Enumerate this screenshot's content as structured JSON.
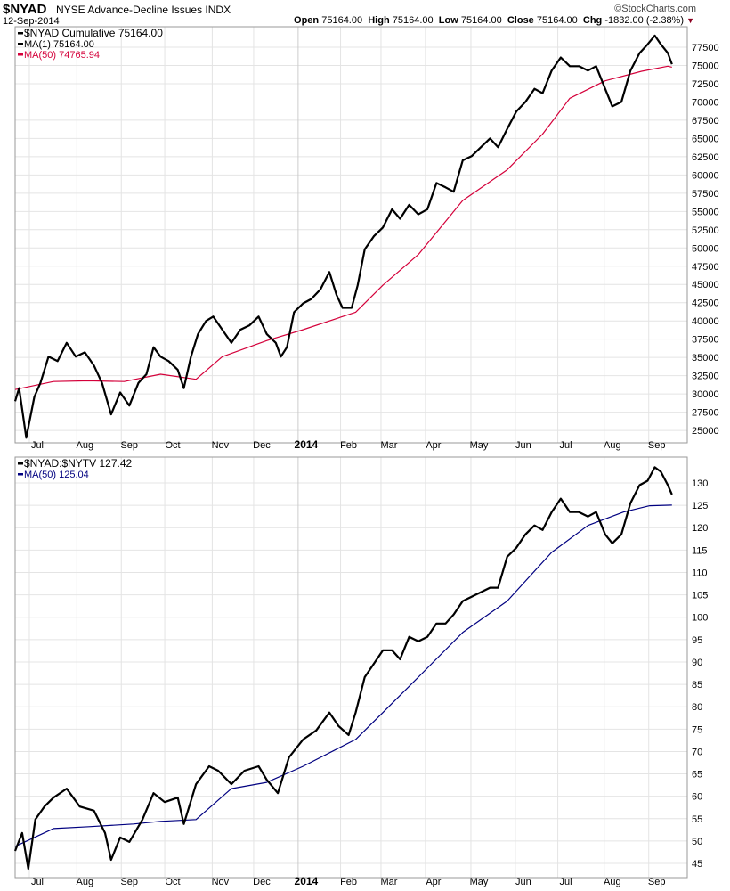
{
  "header": {
    "symbol": "$NYAD",
    "name": "NYSE Advance-Decline Issues INDX",
    "date": "12-Sep-2014",
    "watermark": "©StockCharts.com",
    "open_label": "Open",
    "open": "75164.00",
    "high_label": "High",
    "high": "75164.00",
    "low_label": "Low",
    "low": "75164.00",
    "close_label": "Close",
    "close": "75164.00",
    "chg_label": "Chg",
    "chg": "-1832.00 (-2.38%)"
  },
  "colors": {
    "price": "#000000",
    "ma_red": "#d4003a",
    "ma_blue": "#000080",
    "grid": "#e4e4e4",
    "border": "#9a9a9a"
  },
  "chart_data": [
    {
      "type": "line",
      "title": "$NYAD Cumulative",
      "x_unit": "weeks since mid-Jun 2013",
      "xlim": [
        0,
        66
      ],
      "ylim": [
        22500,
        80000
      ],
      "yticks": [
        25000,
        27500,
        30000,
        32500,
        35000,
        37500,
        40000,
        42500,
        45000,
        47500,
        50000,
        52500,
        55000,
        57500,
        60000,
        62500,
        65000,
        67500,
        70000,
        72500,
        75000,
        77500
      ],
      "legend": [
        "$NYAD Cumulative 75164.00",
        "MA(1) 75164.00",
        "MA(50) 74765.94"
      ],
      "legend_placement": "top-left",
      "series": [
        {
          "name": "$NYAD Cumulative",
          "color": "#000000",
          "points": [
            [
              0,
              29000
            ],
            [
              0.4,
              30800
            ],
            [
              1.1,
              24000
            ],
            [
              1.9,
              29600
            ],
            [
              2.5,
              31500
            ],
            [
              3.3,
              35100
            ],
            [
              4.2,
              34500
            ],
            [
              5.1,
              37000
            ],
            [
              6.0,
              35100
            ],
            [
              6.9,
              35700
            ],
            [
              7.8,
              33900
            ],
            [
              8.6,
              31500
            ],
            [
              9.5,
              27200
            ],
            [
              10.4,
              30200
            ],
            [
              11.3,
              28400
            ],
            [
              12.2,
              31500
            ],
            [
              13.0,
              32700
            ],
            [
              13.7,
              36400
            ],
            [
              14.4,
              35100
            ],
            [
              15.2,
              34500
            ],
            [
              16.1,
              33300
            ],
            [
              16.7,
              30800
            ],
            [
              17.4,
              35100
            ],
            [
              18.1,
              38200
            ],
            [
              18.9,
              40000
            ],
            [
              19.6,
              40600
            ],
            [
              20.5,
              38800
            ],
            [
              21.4,
              37000
            ],
            [
              22.3,
              38800
            ],
            [
              23.2,
              39400
            ],
            [
              24.1,
              40600
            ],
            [
              24.9,
              38200
            ],
            [
              25.8,
              37000
            ],
            [
              26.3,
              35100
            ],
            [
              26.9,
              36400
            ],
            [
              27.6,
              41200
            ],
            [
              28.5,
              42400
            ],
            [
              29.3,
              43000
            ],
            [
              30.2,
              44300
            ],
            [
              31.1,
              46700
            ],
            [
              31.8,
              43600
            ],
            [
              32.4,
              41800
            ],
            [
              33.3,
              41800
            ],
            [
              33.9,
              44900
            ],
            [
              34.6,
              49800
            ],
            [
              35.5,
              51600
            ],
            [
              36.4,
              52800
            ],
            [
              37.3,
              55300
            ],
            [
              38.1,
              54000
            ],
            [
              39.0,
              55900
            ],
            [
              39.9,
              54600
            ],
            [
              40.8,
              55300
            ],
            [
              41.7,
              58900
            ],
            [
              42.6,
              58300
            ],
            [
              43.4,
              57700
            ],
            [
              44.3,
              62000
            ],
            [
              45.2,
              62600
            ],
            [
              46.1,
              63800
            ],
            [
              47.0,
              65000
            ],
            [
              47.8,
              63800
            ],
            [
              48.7,
              66300
            ],
            [
              49.6,
              68700
            ],
            [
              50.5,
              70000
            ],
            [
              51.4,
              71800
            ],
            [
              52.2,
              71200
            ],
            [
              53.1,
              74300
            ],
            [
              54.0,
              76100
            ],
            [
              54.9,
              74900
            ],
            [
              55.8,
              74900
            ],
            [
              56.7,
              74300
            ],
            [
              57.5,
              74900
            ],
            [
              58.4,
              71800
            ],
            [
              59.1,
              69400
            ],
            [
              60.0,
              70000
            ],
            [
              60.9,
              74300
            ],
            [
              61.8,
              76700
            ],
            [
              62.6,
              77900
            ],
            [
              63.3,
              79100
            ],
            [
              63.9,
              77900
            ],
            [
              64.6,
              76700
            ],
            [
              65.0,
              75164
            ]
          ]
        },
        {
          "name": "MA(50)",
          "color": "#d4003a",
          "points": [
            [
              0,
              30600
            ],
            [
              3.8,
              31700
            ],
            [
              7.3,
              31800
            ],
            [
              10.8,
              31700
            ],
            [
              14.4,
              32700
            ],
            [
              17.9,
              32000
            ],
            [
              20.5,
              35100
            ],
            [
              24.9,
              37300
            ],
            [
              28.5,
              38800
            ],
            [
              33.7,
              41200
            ],
            [
              36.4,
              44900
            ],
            [
              39.9,
              49100
            ],
            [
              44.3,
              56500
            ],
            [
              48.7,
              60700
            ],
            [
              52.2,
              65600
            ],
            [
              54.9,
              70500
            ],
            [
              58.4,
              72900
            ],
            [
              62.0,
              74200
            ],
            [
              64.6,
              74900
            ],
            [
              65.0,
              74766
            ]
          ]
        }
      ]
    },
    {
      "type": "line",
      "title": "$NYAD:$NYTV",
      "x_unit": "weeks since mid-Jun 2013",
      "xlim": [
        0,
        66
      ],
      "ylim": [
        42,
        136
      ],
      "yticks": [
        45,
        50,
        55,
        60,
        65,
        70,
        75,
        80,
        85,
        90,
        95,
        100,
        105,
        110,
        115,
        120,
        125,
        130
      ],
      "legend": [
        "$NYAD:$NYTV 127.42",
        "MA(50) 125.04"
      ],
      "legend_placement": "top-left",
      "series": [
        {
          "name": "$NYAD:$NYTV",
          "color": "#000000",
          "points": [
            [
              0,
              47.8
            ],
            [
              0.7,
              51.8
            ],
            [
              1.3,
              43.8
            ],
            [
              2.0,
              54.8
            ],
            [
              2.9,
              57.7
            ],
            [
              3.8,
              59.7
            ],
            [
              5.1,
              61.7
            ],
            [
              6.4,
              57.7
            ],
            [
              7.8,
              56.8
            ],
            [
              8.9,
              51.8
            ],
            [
              9.5,
              45.8
            ],
            [
              10.4,
              50.8
            ],
            [
              11.3,
              49.8
            ],
            [
              12.6,
              54.8
            ],
            [
              13.7,
              60.7
            ],
            [
              14.8,
              58.7
            ],
            [
              16.1,
              59.7
            ],
            [
              16.7,
              53.8
            ],
            [
              17.9,
              62.7
            ],
            [
              19.2,
              66.7
            ],
            [
              20.1,
              65.7
            ],
            [
              21.4,
              62.7
            ],
            [
              22.7,
              65.7
            ],
            [
              24.1,
              66.7
            ],
            [
              24.9,
              63.7
            ],
            [
              26.0,
              60.7
            ],
            [
              27.1,
              68.7
            ],
            [
              28.5,
              72.7
            ],
            [
              29.8,
              74.7
            ],
            [
              31.1,
              78.7
            ],
            [
              32.0,
              75.7
            ],
            [
              33.0,
              73.7
            ],
            [
              33.7,
              78.7
            ],
            [
              34.6,
              86.6
            ],
            [
              35.5,
              89.6
            ],
            [
              36.4,
              92.6
            ],
            [
              37.3,
              92.6
            ],
            [
              38.1,
              90.6
            ],
            [
              39.0,
              95.6
            ],
            [
              39.9,
              94.6
            ],
            [
              40.8,
              95.6
            ],
            [
              41.7,
              98.6
            ],
            [
              42.6,
              98.6
            ],
            [
              43.4,
              100.6
            ],
            [
              44.3,
              103.6
            ],
            [
              45.2,
              104.6
            ],
            [
              46.1,
              105.6
            ],
            [
              47.0,
              106.6
            ],
            [
              47.8,
              106.6
            ],
            [
              48.7,
              113.5
            ],
            [
              49.6,
              115.5
            ],
            [
              50.5,
              118.5
            ],
            [
              51.4,
              120.5
            ],
            [
              52.2,
              119.5
            ],
            [
              53.1,
              123.5
            ],
            [
              54.0,
              126.5
            ],
            [
              54.9,
              123.5
            ],
            [
              55.8,
              123.5
            ],
            [
              56.7,
              122.5
            ],
            [
              57.5,
              123.5
            ],
            [
              58.4,
              118.5
            ],
            [
              59.1,
              116.5
            ],
            [
              60.0,
              118.5
            ],
            [
              60.9,
              125.5
            ],
            [
              61.8,
              129.5
            ],
            [
              62.6,
              130.5
            ],
            [
              63.3,
              133.5
            ],
            [
              63.9,
              132.5
            ],
            [
              64.6,
              129.5
            ],
            [
              65.0,
              127.42
            ]
          ]
        },
        {
          "name": "MA(50)",
          "color": "#000080",
          "points": [
            [
              0,
              48.8
            ],
            [
              3.8,
              52.8
            ],
            [
              7.3,
              53.2
            ],
            [
              11.7,
              53.8
            ],
            [
              14.4,
              54.4
            ],
            [
              17.9,
              54.8
            ],
            [
              21.4,
              61.7
            ],
            [
              24.9,
              63.1
            ],
            [
              28.5,
              66.7
            ],
            [
              33.7,
              72.7
            ],
            [
              36.4,
              78.7
            ],
            [
              39.9,
              86.6
            ],
            [
              44.3,
              96.6
            ],
            [
              48.7,
              103.6
            ],
            [
              53.1,
              114.5
            ],
            [
              56.7,
              120.5
            ],
            [
              60.2,
              123.5
            ],
            [
              62.8,
              124.9
            ],
            [
              65.0,
              125.04
            ]
          ]
        }
      ]
    }
  ],
  "x_axis": {
    "labels": [
      {
        "text": "Jul",
        "week": 2.2
      },
      {
        "text": "Aug",
        "week": 6.9
      },
      {
        "text": "Sep",
        "week": 11.3
      },
      {
        "text": "Oct",
        "week": 15.6
      },
      {
        "text": "Nov",
        "week": 20.3
      },
      {
        "text": "Dec",
        "week": 24.4
      },
      {
        "text": "2014",
        "week": 28.8,
        "bold": true
      },
      {
        "text": "Feb",
        "week": 33.0
      },
      {
        "text": "Mar",
        "week": 37.0
      },
      {
        "text": "Apr",
        "week": 41.4
      },
      {
        "text": "May",
        "week": 45.9
      },
      {
        "text": "Jun",
        "week": 50.3
      },
      {
        "text": "Jul",
        "week": 54.5
      },
      {
        "text": "Aug",
        "week": 59.1
      },
      {
        "text": "Sep",
        "week": 63.5
      }
    ]
  }
}
